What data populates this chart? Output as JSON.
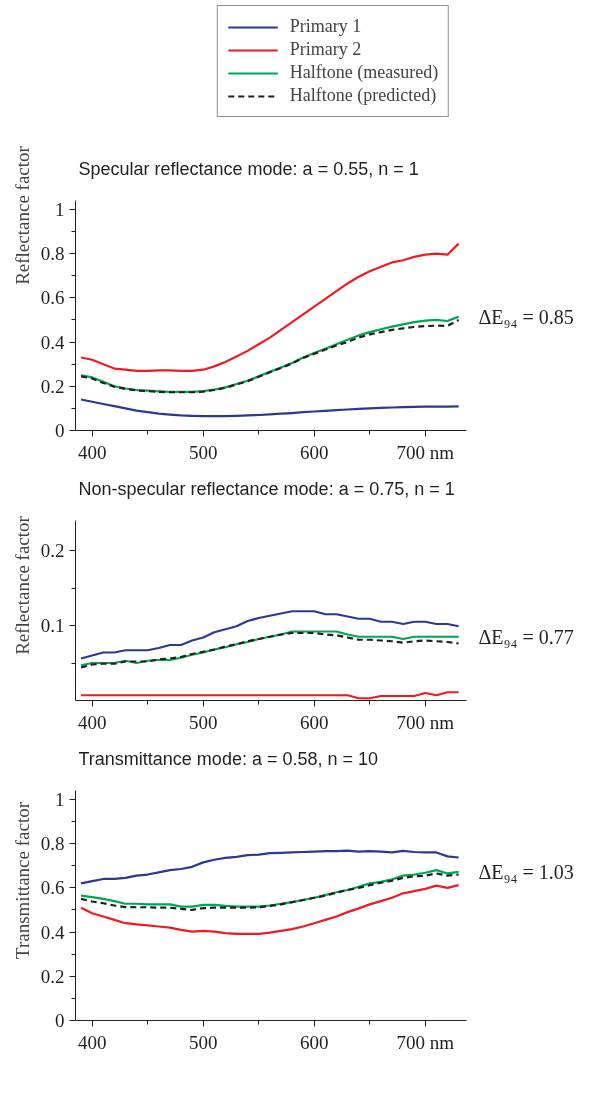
{
  "chart_data": [
    {
      "type": "line",
      "title": "Specular reflectance mode:   a = 0.55,  n = 1",
      "ylabel": "Reflectance factor",
      "legend": "top",
      "x": [
        390,
        400,
        410,
        420,
        430,
        440,
        450,
        460,
        470,
        480,
        490,
        500,
        510,
        520,
        530,
        540,
        550,
        560,
        570,
        580,
        590,
        600,
        610,
        620,
        630,
        640,
        650,
        660,
        670,
        680,
        690,
        700,
        710,
        720,
        730
      ],
      "xlim": [
        385,
        737
      ],
      "xticks": [
        400,
        500,
        600,
        {
          "value": 700,
          "label": "700 nm"
        },
        {
          "value": 450,
          "label": null
        },
        {
          "value": 550,
          "label": null
        },
        {
          "value": 650,
          "label": null
        }
      ],
      "ylim": [
        0,
        1.04
      ],
      "yticks": [
        0,
        0.2,
        0.4,
        0.6,
        0.8,
        1,
        {
          "value": 0.1,
          "label": null
        },
        {
          "value": 0.3,
          "label": null
        },
        {
          "value": 0.5,
          "label": null
        },
        {
          "value": 0.7,
          "label": null
        },
        {
          "value": 0.9,
          "label": null
        }
      ],
      "annotations": [
        "ΔE₉₄ = 0.85"
      ],
      "series": [
        {
          "name": "Primary 1",
          "color": "#2b3990",
          "values": [
            0.14,
            0.13,
            0.12,
            0.11,
            0.1,
            0.09,
            0.083,
            0.076,
            0.072,
            0.068,
            0.066,
            0.065,
            0.065,
            0.065,
            0.066,
            0.068,
            0.07,
            0.073,
            0.076,
            0.079,
            0.083,
            0.086,
            0.089,
            0.092,
            0.095,
            0.098,
            0.1,
            0.102,
            0.104,
            0.106,
            0.107,
            0.108,
            0.108,
            0.108,
            0.109
          ]
        },
        {
          "name": "Primary 2",
          "color": "#ed1c24",
          "values": [
            0.33,
            0.32,
            0.3,
            0.28,
            0.275,
            0.27,
            0.27,
            0.272,
            0.272,
            0.27,
            0.27,
            0.275,
            0.29,
            0.31,
            0.335,
            0.36,
            0.39,
            0.42,
            0.455,
            0.49,
            0.525,
            0.56,
            0.595,
            0.63,
            0.665,
            0.695,
            0.72,
            0.74,
            0.76,
            0.77,
            0.785,
            0.795,
            0.8,
            0.795,
            0.845
          ]
        },
        {
          "name": "Halftone (measured)",
          "color": "#00a651",
          "values": [
            0.25,
            0.24,
            0.22,
            0.2,
            0.19,
            0.183,
            0.18,
            0.177,
            0.175,
            0.175,
            0.175,
            0.178,
            0.185,
            0.195,
            0.21,
            0.225,
            0.245,
            0.265,
            0.285,
            0.305,
            0.33,
            0.35,
            0.37,
            0.39,
            0.41,
            0.43,
            0.445,
            0.458,
            0.47,
            0.48,
            0.49,
            0.497,
            0.5,
            0.495,
            0.515
          ]
        },
        {
          "name": "Halftone (predicted)",
          "color": "#231f20",
          "line_style": "dashed",
          "values": [
            0.245,
            0.235,
            0.215,
            0.198,
            0.188,
            0.181,
            0.178,
            0.175,
            0.173,
            0.173,
            0.173,
            0.176,
            0.183,
            0.193,
            0.208,
            0.223,
            0.243,
            0.263,
            0.283,
            0.303,
            0.328,
            0.347,
            0.366,
            0.385,
            0.4,
            0.42,
            0.435,
            0.445,
            0.455,
            0.462,
            0.468,
            0.472,
            0.474,
            0.473,
            0.5
          ]
        }
      ]
    },
    {
      "type": "line",
      "title": "Non-specular reflectance mode:   a = 0.75,  n = 1",
      "ylabel": "Reflectance factor",
      "x": [
        390,
        400,
        410,
        420,
        430,
        440,
        450,
        460,
        470,
        480,
        490,
        500,
        510,
        520,
        530,
        540,
        550,
        560,
        570,
        580,
        590,
        600,
        610,
        620,
        630,
        640,
        650,
        660,
        670,
        680,
        690,
        700,
        710,
        720,
        730
      ],
      "xlim": [
        385,
        737
      ],
      "xticks": [
        400,
        500,
        600,
        {
          "value": 700,
          "label": "700 nm"
        },
        {
          "value": 450,
          "label": null
        },
        {
          "value": 550,
          "label": null
        },
        {
          "value": 650,
          "label": null
        }
      ],
      "ylim": [
        0,
        0.24
      ],
      "yticks": [
        0.1,
        0.2,
        {
          "value": 0.05,
          "label": null
        },
        {
          "value": 0.15,
          "label": null
        }
      ],
      "annotations": [
        "ΔE₉₄ = 0.77"
      ],
      "series": [
        {
          "color": "#2b3990",
          "values": [
            0.056,
            0.06,
            0.064,
            0.064,
            0.067,
            0.067,
            0.067,
            0.07,
            0.074,
            0.074,
            0.08,
            0.084,
            0.091,
            0.095,
            0.099,
            0.106,
            0.11,
            0.113,
            0.116,
            0.119,
            0.119,
            0.119,
            0.115,
            0.115,
            0.112,
            0.109,
            0.109,
            0.105,
            0.105,
            0.102,
            0.105,
            0.105,
            0.102,
            0.102,
            0.099
          ]
        },
        {
          "color": "#ed1c24",
          "values": [
            0.007,
            0.007,
            0.007,
            0.007,
            0.007,
            0.007,
            0.007,
            0.007,
            0.007,
            0.007,
            0.007,
            0.007,
            0.007,
            0.007,
            0.007,
            0.007,
            0.007,
            0.007,
            0.007,
            0.007,
            0.007,
            0.007,
            0.007,
            0.007,
            0.007,
            0.003,
            0.003,
            0.006,
            0.006,
            0.006,
            0.006,
            0.01,
            0.007,
            0.011,
            0.011
          ]
        },
        {
          "color": "#00a651",
          "values": [
            0.047,
            0.05,
            0.05,
            0.05,
            0.053,
            0.05,
            0.053,
            0.054,
            0.054,
            0.057,
            0.061,
            0.064,
            0.068,
            0.071,
            0.075,
            0.078,
            0.082,
            0.085,
            0.088,
            0.092,
            0.092,
            0.092,
            0.092,
            0.092,
            0.088,
            0.085,
            0.085,
            0.085,
            0.085,
            0.082,
            0.085,
            0.085,
            0.085,
            0.085,
            0.085
          ]
        },
        {
          "color": "#231f20",
          "line_style": "dashed",
          "values": [
            0.044,
            0.048,
            0.049,
            0.049,
            0.052,
            0.052,
            0.052,
            0.055,
            0.056,
            0.058,
            0.062,
            0.065,
            0.068,
            0.072,
            0.075,
            0.079,
            0.082,
            0.085,
            0.088,
            0.09,
            0.09,
            0.09,
            0.088,
            0.087,
            0.084,
            0.081,
            0.081,
            0.08,
            0.079,
            0.077,
            0.079,
            0.08,
            0.079,
            0.078,
            0.076
          ]
        }
      ]
    },
    {
      "type": "line",
      "title": "Transmittance mode:   a = 0.58,  n = 10",
      "ylabel": "Transmittance factor",
      "x": [
        390,
        400,
        410,
        420,
        430,
        440,
        450,
        460,
        470,
        480,
        490,
        500,
        510,
        520,
        530,
        540,
        550,
        560,
        570,
        580,
        590,
        600,
        610,
        620,
        630,
        640,
        650,
        660,
        670,
        680,
        690,
        700,
        710,
        720,
        730
      ],
      "xlim": [
        385,
        737
      ],
      "xticks": [
        400,
        500,
        600,
        {
          "value": 700,
          "label": "700 nm"
        },
        {
          "value": 450,
          "label": null
        },
        {
          "value": 550,
          "label": null
        },
        {
          "value": 650,
          "label": null
        }
      ],
      "ylim": [
        0,
        1.04
      ],
      "yticks": [
        0,
        0.2,
        0.4,
        0.6,
        0.8,
        1,
        {
          "value": 0.1,
          "label": null
        },
        {
          "value": 0.3,
          "label": null
        },
        {
          "value": 0.5,
          "label": null
        },
        {
          "value": 0.7,
          "label": null
        },
        {
          "value": 0.9,
          "label": null
        }
      ],
      "annotations": [
        "ΔE₉₄ = 1.03"
      ],
      "series": [
        {
          "color": "#2b3990",
          "values": [
            0.62,
            0.63,
            0.64,
            0.64,
            0.645,
            0.655,
            0.66,
            0.67,
            0.68,
            0.685,
            0.695,
            0.715,
            0.727,
            0.735,
            0.74,
            0.748,
            0.75,
            0.757,
            0.758,
            0.76,
            0.762,
            0.764,
            0.766,
            0.766,
            0.768,
            0.764,
            0.766,
            0.764,
            0.76,
            0.767,
            0.762,
            0.76,
            0.76,
            0.742,
            0.737
          ]
        },
        {
          "color": "#ed1c24",
          "values": [
            0.51,
            0.485,
            0.47,
            0.455,
            0.44,
            0.435,
            0.43,
            0.425,
            0.42,
            0.41,
            0.402,
            0.405,
            0.402,
            0.395,
            0.392,
            0.392,
            0.392,
            0.397,
            0.405,
            0.413,
            0.425,
            0.44,
            0.455,
            0.47,
            0.49,
            0.507,
            0.525,
            0.54,
            0.555,
            0.575,
            0.585,
            0.595,
            0.61,
            0.6,
            0.612
          ]
        },
        {
          "color": "#00a651",
          "values": [
            0.565,
            0.558,
            0.55,
            0.54,
            0.528,
            0.528,
            0.525,
            0.525,
            0.525,
            0.515,
            0.515,
            0.523,
            0.523,
            0.518,
            0.515,
            0.515,
            0.515,
            0.52,
            0.528,
            0.535,
            0.545,
            0.555,
            0.567,
            0.58,
            0.59,
            0.605,
            0.62,
            0.627,
            0.638,
            0.655,
            0.66,
            0.668,
            0.68,
            0.665,
            0.672
          ]
        },
        {
          "color": "#231f20",
          "line_style": "dashed",
          "values": [
            0.55,
            0.538,
            0.53,
            0.52,
            0.513,
            0.512,
            0.512,
            0.51,
            0.51,
            0.505,
            0.5,
            0.508,
            0.51,
            0.51,
            0.51,
            0.51,
            0.512,
            0.518,
            0.525,
            0.535,
            0.545,
            0.555,
            0.565,
            0.578,
            0.59,
            0.6,
            0.612,
            0.623,
            0.632,
            0.645,
            0.652,
            0.655,
            0.665,
            0.655,
            0.66
          ]
        }
      ]
    }
  ]
}
